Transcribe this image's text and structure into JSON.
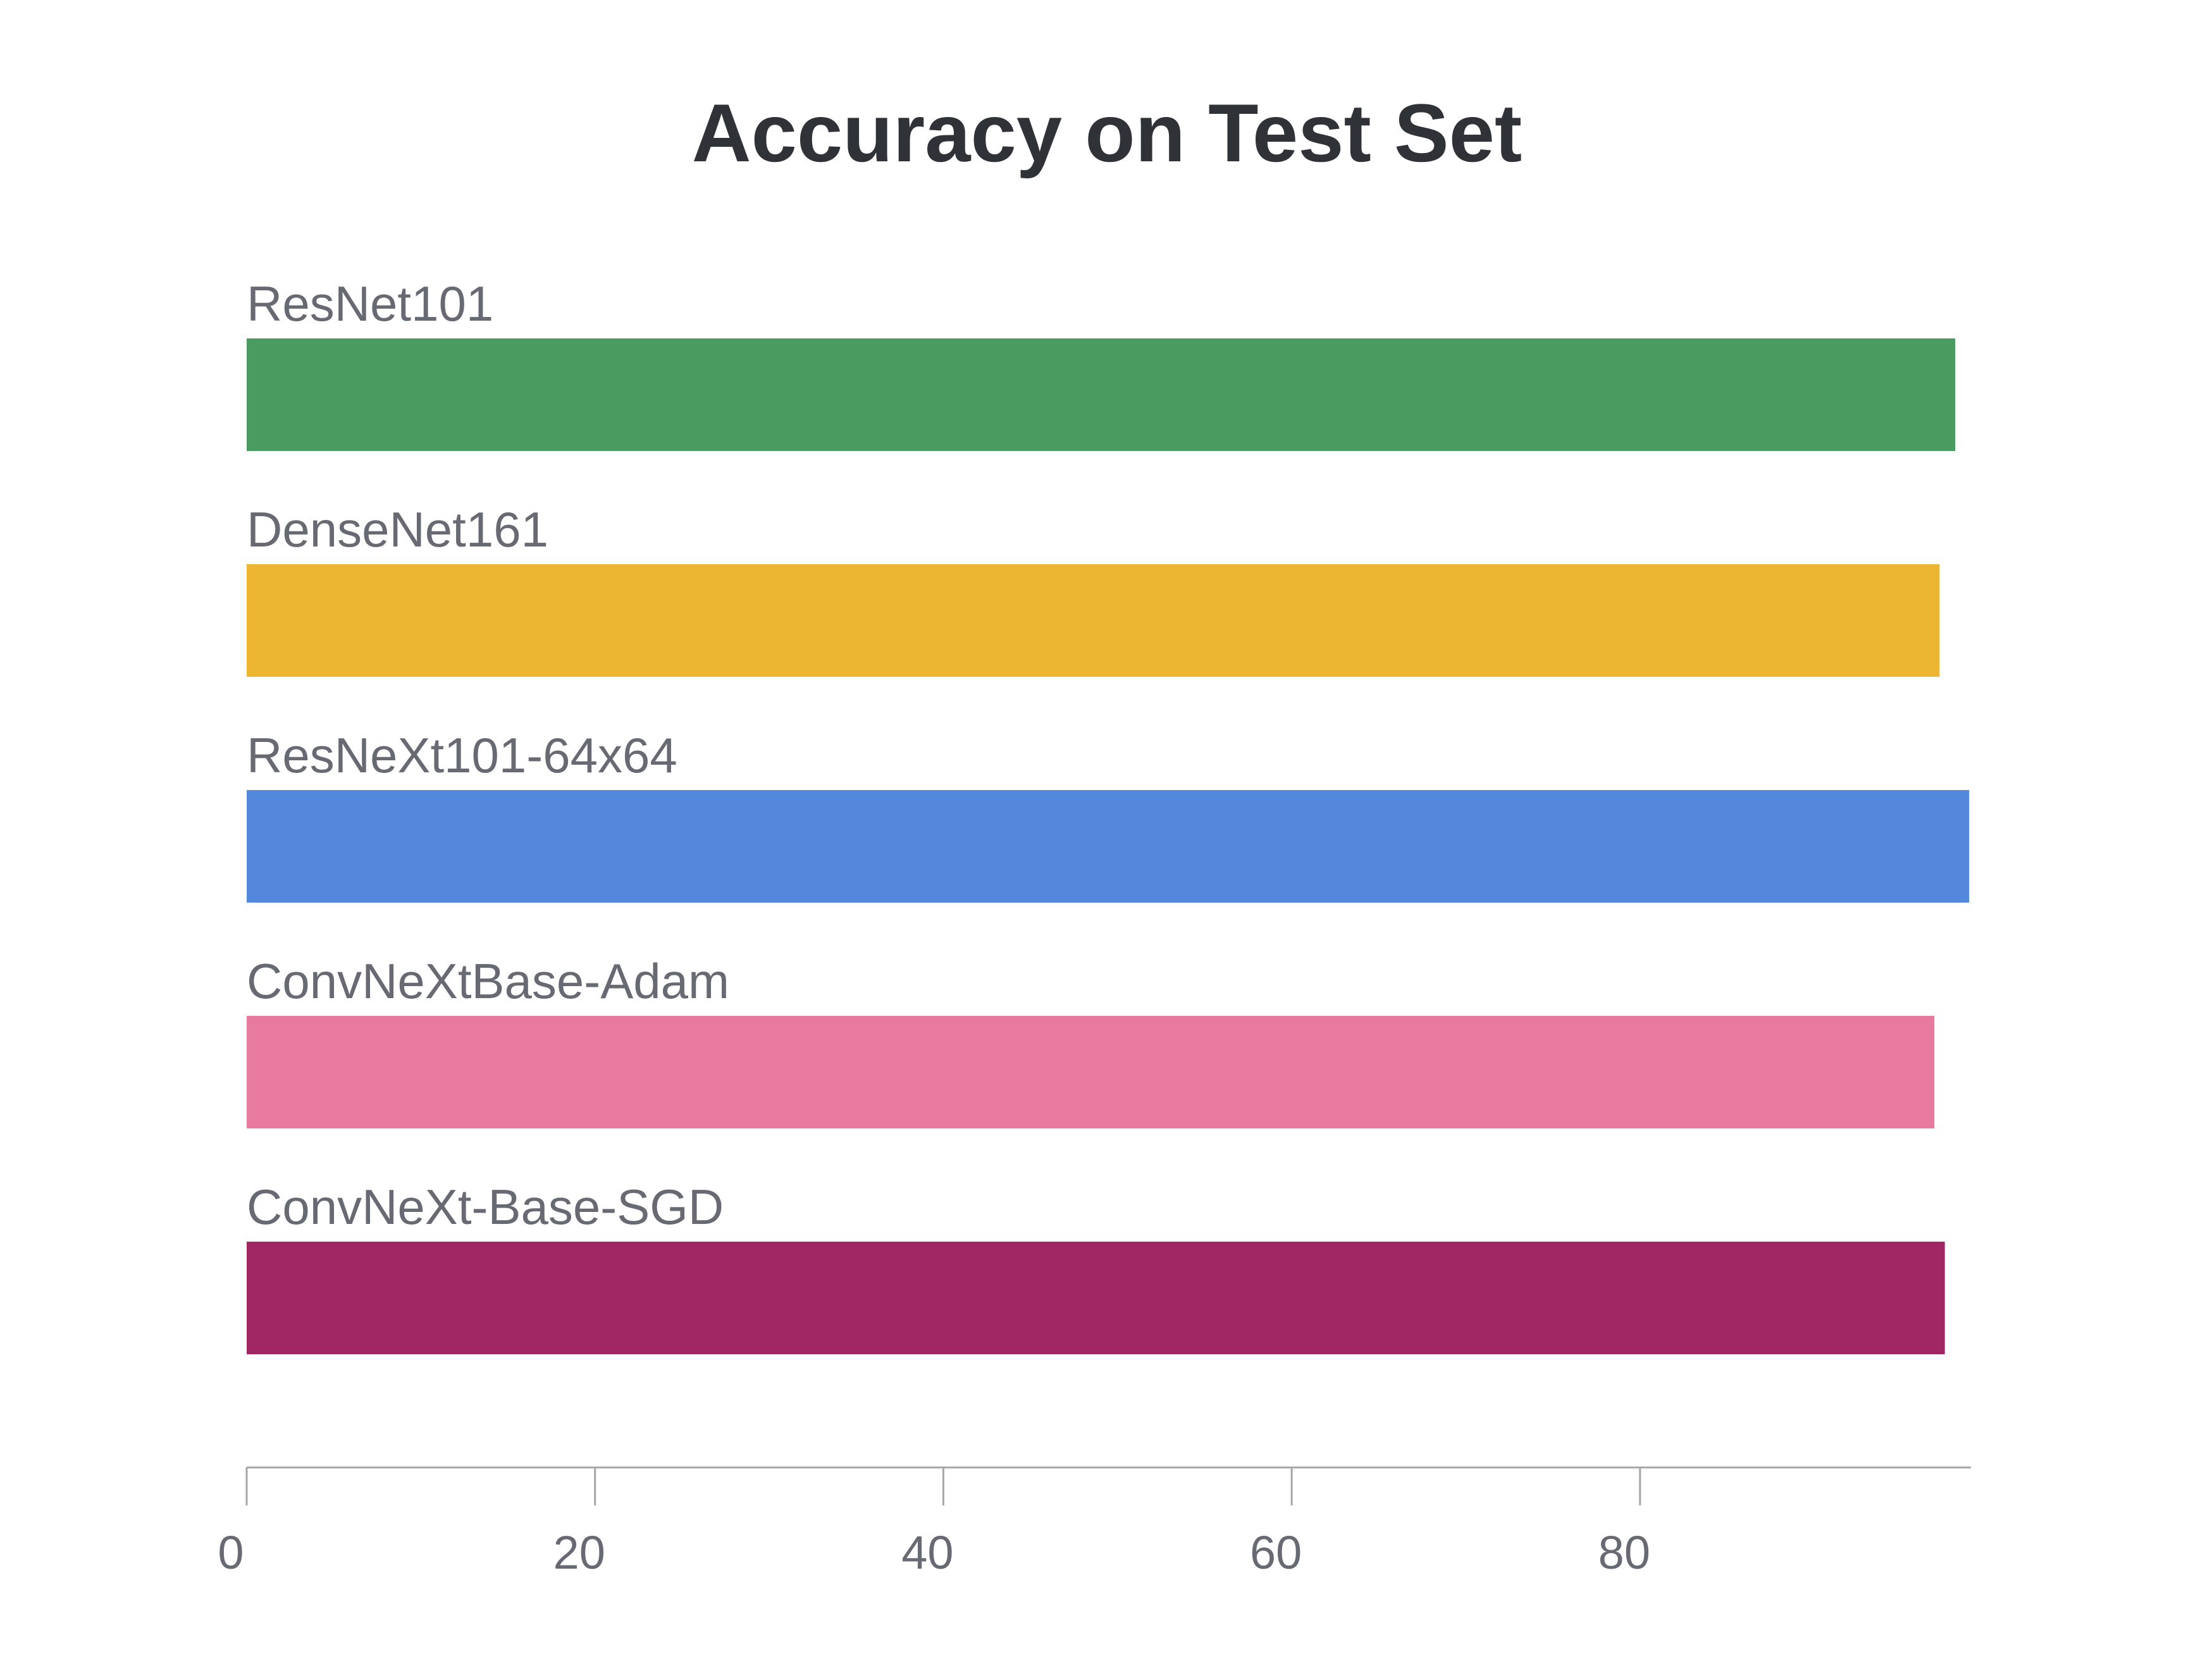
{
  "chart_data": {
    "type": "bar",
    "orientation": "horizontal",
    "title": "Accuracy on Test Set",
    "xlabel": "",
    "ylabel": "",
    "categories": [
      "ResNet101",
      "DenseNet161",
      "ResNeXt101-64x64",
      "ConvNeXtBase-Adam",
      "ConvNeXt-Base-SGD"
    ],
    "values": [
      98.1,
      97.2,
      98.9,
      96.9,
      97.5
    ],
    "colors": [
      "#499b60",
      "#ecb632",
      "#5488dd",
      "#e97a9f",
      "#a12764"
    ],
    "xlim": [
      0,
      99
    ],
    "xticks": [
      "0",
      "20",
      "40",
      "60",
      "80"
    ],
    "xtick_values": [
      0,
      20,
      40,
      60,
      80
    ],
    "grid": false,
    "legend": "none"
  }
}
